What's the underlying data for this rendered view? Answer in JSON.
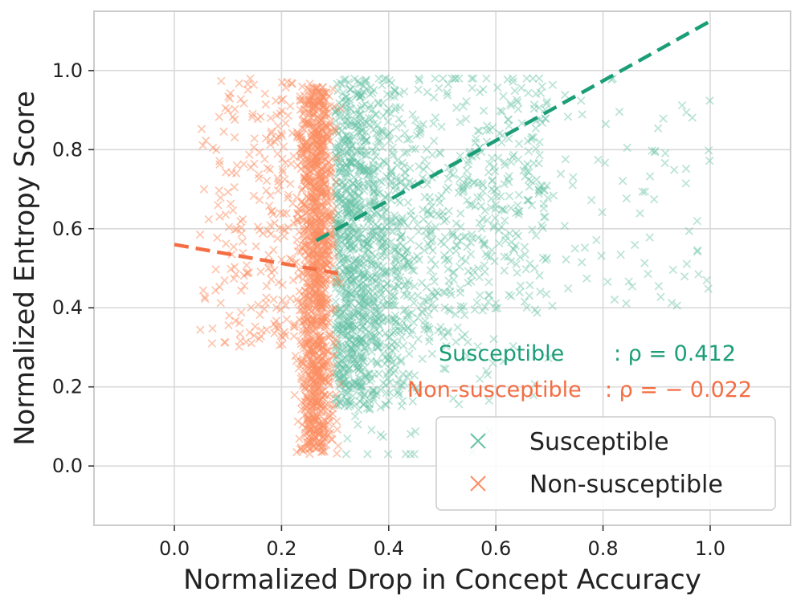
{
  "chart_data": {
    "type": "scatter",
    "title": "",
    "xlabel": "Normalized Drop in Concept Accuracy",
    "ylabel": "Normalized Entropy Score",
    "xlim": [
      -0.15,
      1.15
    ],
    "ylim": [
      -0.15,
      1.15
    ],
    "x_ticks": [
      0.0,
      0.2,
      0.4,
      0.6,
      0.8,
      1.0
    ],
    "y_ticks": [
      0.0,
      0.2,
      0.4,
      0.6,
      0.8,
      1.0
    ],
    "x_tick_labels": [
      "0.0",
      "0.2",
      "0.4",
      "0.6",
      "0.8",
      "1.0"
    ],
    "y_tick_labels": [
      "0.0",
      "0.2",
      "0.4",
      "0.6",
      "0.8",
      "1.0"
    ],
    "grid": true,
    "legend_position": "lower-right",
    "marker": "×",
    "series": [
      {
        "name": "Susceptible",
        "color": "#66c2a5",
        "fit_color": "#1b9e77",
        "cluster": {
          "x_min": 0.27,
          "x_max": 1.0,
          "y_min": 0.02,
          "y_max": 0.99,
          "approx_points": 1800
        },
        "trend_line": {
          "x": [
            0.265,
            1.0
          ],
          "y": [
            0.57,
            1.125
          ]
        },
        "correlation_label": "Susceptible",
        "correlation_value": ": ρ = 0.412"
      },
      {
        "name": "Non-susceptible",
        "color": "#fc8d62",
        "fit_color": "#f46d43",
        "cluster": {
          "x_min": 0.0,
          "x_max": 0.31,
          "y_min": 0.0,
          "y_max": 0.99,
          "approx_points": 1500
        },
        "trend_line": {
          "x": [
            0.0,
            0.315
          ],
          "y": [
            0.56,
            0.485
          ]
        },
        "correlation_label": "Non-susceptible",
        "correlation_value": ": ρ = − 0.022"
      }
    ]
  }
}
